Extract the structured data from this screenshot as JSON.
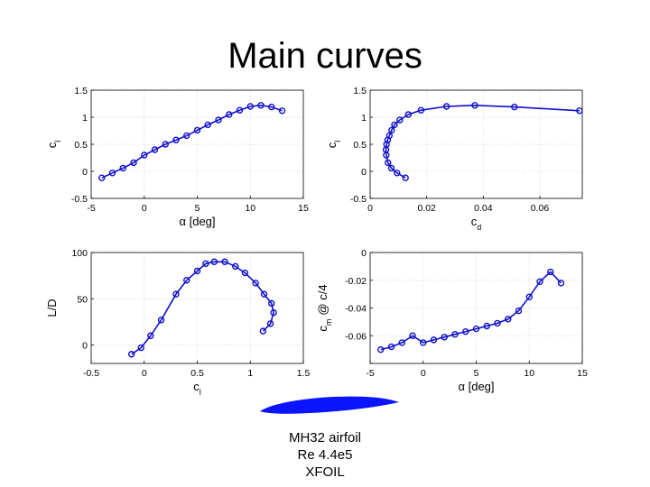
{
  "slide": {
    "title": "Main curves",
    "caption": [
      "MH32 airfoil",
      "Re 4.4e5",
      "XFOIL"
    ]
  },
  "style": {
    "series_color": "#1010cc",
    "grid_color": "#d9d9d9",
    "airfoil_color": "#0a14ff"
  },
  "chart_data": [
    {
      "id": "cl_alpha",
      "type": "line",
      "xlabel": "α [deg]",
      "ylabel": "c",
      "ylabel_sub": "l",
      "xlim": [
        -5,
        15
      ],
      "ylim": [
        -0.5,
        1.5
      ],
      "xticks": [
        -5,
        0,
        5,
        10,
        15
      ],
      "xtick_labels": [
        "-5",
        "0",
        "5",
        "10",
        "15"
      ],
      "yticks": [
        -0.5,
        0,
        0.5,
        1,
        1.5
      ],
      "ytick_labels": [
        "-0.5",
        "0",
        "0.5",
        "1",
        "1.5"
      ],
      "grid": true,
      "x": [
        -4,
        -3,
        -2,
        -1,
        0,
        1,
        2,
        3,
        4,
        5,
        6,
        7,
        8,
        9,
        10,
        11,
        12,
        13
      ],
      "y": [
        -0.12,
        -0.03,
        0.06,
        0.16,
        0.3,
        0.4,
        0.5,
        0.58,
        0.66,
        0.76,
        0.86,
        0.95,
        1.05,
        1.13,
        1.2,
        1.22,
        1.19,
        1.12
      ]
    },
    {
      "id": "cl_cd",
      "type": "line",
      "xlabel": "c",
      "xlabel_sub": "d",
      "ylabel": "c",
      "ylabel_sub": "l",
      "xlim": [
        0,
        0.075
      ],
      "ylim": [
        -0.5,
        1.5
      ],
      "xticks": [
        0,
        0.02,
        0.04,
        0.06
      ],
      "xtick_labels": [
        "0",
        "0.02",
        "0.04",
        "0.06"
      ],
      "yticks": [
        -0.5,
        0,
        0.5,
        1,
        1.5
      ],
      "ytick_labels": [
        "-0.5",
        "0",
        "0.5",
        "1",
        "1.5"
      ],
      "grid": true,
      "x": [
        0.0125,
        0.0095,
        0.0075,
        0.0063,
        0.0057,
        0.0056,
        0.0058,
        0.0062,
        0.0068,
        0.0076,
        0.0086,
        0.0105,
        0.0135,
        0.018,
        0.027,
        0.037,
        0.051,
        0.074
      ],
      "y": [
        -0.12,
        -0.03,
        0.06,
        0.16,
        0.3,
        0.4,
        0.5,
        0.58,
        0.66,
        0.76,
        0.86,
        0.95,
        1.05,
        1.13,
        1.2,
        1.22,
        1.19,
        1.12
      ]
    },
    {
      "id": "ld_cl",
      "type": "line",
      "xlabel": "c",
      "xlabel_sub": "l",
      "ylabel": "L/D",
      "xlim": [
        -0.5,
        1.5
      ],
      "ylim": [
        -20,
        100
      ],
      "xticks": [
        -0.5,
        0,
        0.5,
        1,
        1.5
      ],
      "xtick_labels": [
        "-0.5",
        "0",
        "0.5",
        "1",
        "1.5"
      ],
      "yticks": [
        0,
        50,
        100
      ],
      "ytick_labels": [
        "0",
        "50",
        "100"
      ],
      "grid": true,
      "x": [
        -0.12,
        -0.03,
        0.06,
        0.16,
        0.3,
        0.4,
        0.5,
        0.58,
        0.66,
        0.76,
        0.86,
        0.95,
        1.05,
        1.13,
        1.2,
        1.22,
        1.19,
        1.12
      ],
      "y": [
        -10,
        -3,
        10,
        27,
        55,
        70,
        80,
        88,
        90,
        90,
        85,
        78,
        67,
        55,
        45,
        35,
        23,
        15
      ]
    },
    {
      "id": "cm_alpha",
      "type": "line",
      "xlabel": "α [deg]",
      "ylabel": "c",
      "ylabel_sub": "m",
      "ylabel_suffix": "@ c/4",
      "xlim": [
        -5,
        15
      ],
      "ylim": [
        -0.08,
        0
      ],
      "xticks": [
        -5,
        0,
        5,
        10,
        15
      ],
      "xtick_labels": [
        "-5",
        "0",
        "5",
        "10",
        "15"
      ],
      "yticks": [
        -0.08,
        -0.06,
        -0.04,
        -0.02,
        0
      ],
      "ytick_labels": [
        "",
        "-0.06",
        "-0.04",
        "-0.02",
        "0"
      ],
      "grid": true,
      "x": [
        -4,
        -3,
        -2,
        -1,
        0,
        1,
        2,
        3,
        4,
        5,
        6,
        7,
        8,
        9,
        10,
        11,
        12,
        13
      ],
      "y": [
        -0.07,
        -0.068,
        -0.065,
        -0.06,
        -0.065,
        -0.063,
        -0.061,
        -0.059,
        -0.057,
        -0.055,
        -0.053,
        -0.051,
        -0.048,
        -0.042,
        -0.032,
        -0.021,
        -0.014,
        -0.022
      ]
    }
  ]
}
